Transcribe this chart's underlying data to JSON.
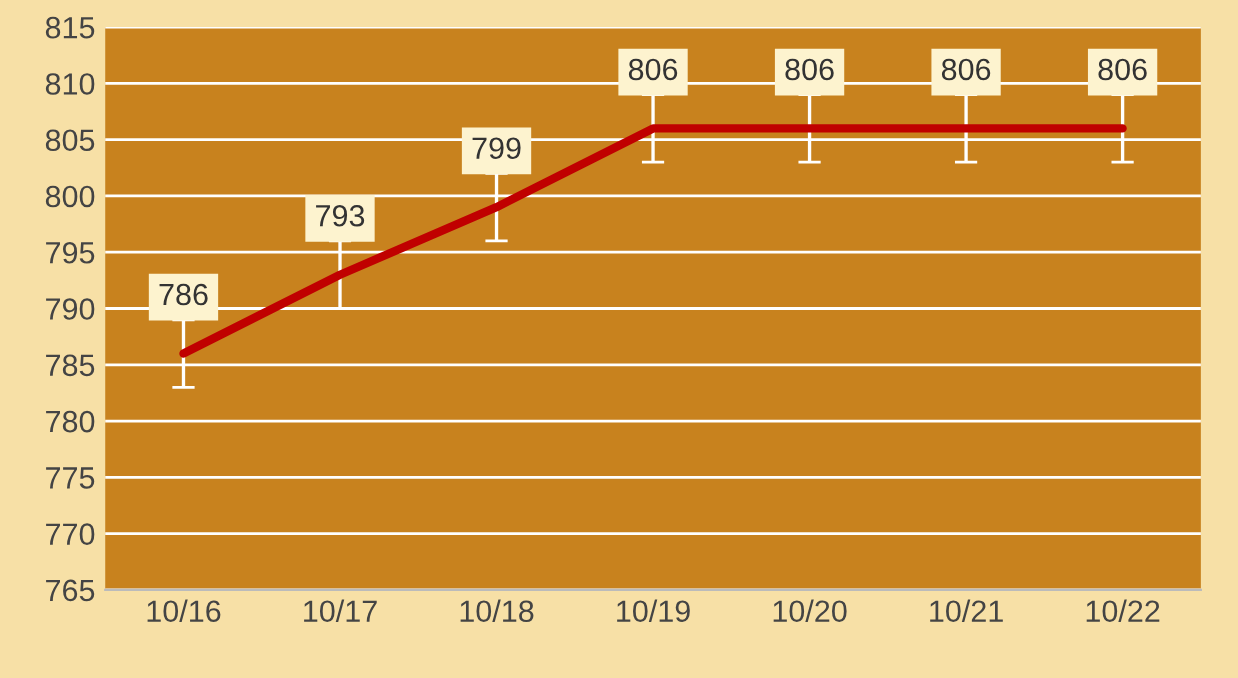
{
  "chart_data": {
    "type": "line",
    "categories": [
      "10/16",
      "10/17",
      "10/18",
      "10/19",
      "10/20",
      "10/21",
      "10/22"
    ],
    "series": [
      {
        "color": "#c00000",
        "values": [
          786,
          793,
          799,
          806,
          806,
          806,
          806
        ],
        "errors": [
          3,
          3,
          3,
          3,
          3,
          3,
          3
        ]
      }
    ],
    "ylim": [
      765,
      815
    ],
    "yticks": [
      765,
      770,
      775,
      780,
      785,
      790,
      795,
      800,
      805,
      810,
      815
    ],
    "grid": "y",
    "data_labels": true,
    "marker": "none",
    "line_style": "solid"
  }
}
